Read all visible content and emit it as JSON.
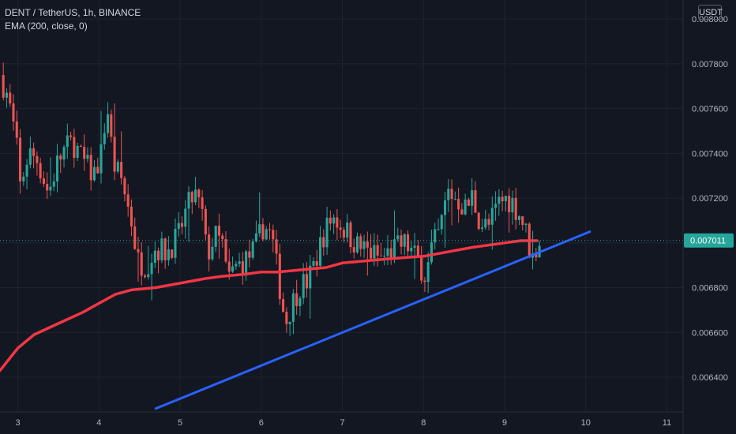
{
  "header": {
    "title": "DENT / TetherUS, 1h, BINANCE",
    "indicator": "EMA (200, close, 0)"
  },
  "axis": {
    "currency": "USDT"
  },
  "colors": {
    "background": "#131722",
    "up": "#26a69a",
    "down": "#ef5350",
    "ema": "#f23645",
    "trendline": "#2962ff",
    "grid": "#1f2330",
    "price_badge": "#26a69a"
  },
  "chart_data": {
    "type": "candlestick",
    "symbol": "DENT / TetherUS",
    "interval": "1h",
    "exchange": "BINANCE",
    "x_ticks": [
      "3",
      "4",
      "5",
      "6",
      "7",
      "8",
      "9",
      "10",
      "11"
    ],
    "x_tick_values": [
      3,
      4,
      5,
      6,
      7,
      8,
      9,
      10,
      11
    ],
    "xlim": [
      2.78,
      11.2
    ],
    "y_ticks": [
      "0.008000",
      "0.007800",
      "0.007600",
      "0.007400",
      "0.007200",
      "0.007000",
      "0.006800",
      "0.006600",
      "0.006400"
    ],
    "y_tick_values": [
      0.008,
      0.0078,
      0.0076,
      0.0074,
      0.0072,
      0.007,
      0.0068,
      0.0066,
      0.0064
    ],
    "ylim": [
      0.006245,
      0.008085
    ],
    "last_price": 0.007011,
    "last_price_label": "0.007011",
    "grid": true,
    "trendline": {
      "x": [
        4.7,
        10.05
      ],
      "y": [
        0.00626,
        0.00705
      ]
    },
    "ema_path": [
      [
        2.78,
        0.00643
      ],
      [
        3.0,
        0.00653
      ],
      [
        3.2,
        0.00659
      ],
      [
        3.5,
        0.00664
      ],
      [
        3.8,
        0.00669
      ],
      [
        4.0,
        0.00673
      ],
      [
        4.2,
        0.00677
      ],
      [
        4.4,
        0.00679
      ],
      [
        4.7,
        0.0068
      ],
      [
        5.0,
        0.00682
      ],
      [
        5.3,
        0.00684
      ],
      [
        5.5,
        0.00685
      ],
      [
        5.8,
        0.00686
      ],
      [
        6.0,
        0.00687
      ],
      [
        6.2,
        0.00687
      ],
      [
        6.5,
        0.00688
      ],
      [
        6.8,
        0.00689
      ],
      [
        7.0,
        0.00691
      ],
      [
        7.3,
        0.00692
      ],
      [
        7.6,
        0.00693
      ],
      [
        8.0,
        0.00694
      ],
      [
        8.3,
        0.00696
      ],
      [
        8.6,
        0.00698
      ],
      [
        9.0,
        0.007
      ],
      [
        9.2,
        0.00701
      ],
      [
        9.4,
        0.00701
      ]
    ],
    "price_path": [
      [
        2.8,
        0.00775
      ],
      [
        2.9,
        0.00765
      ],
      [
        3.0,
        0.00745
      ],
      [
        3.05,
        0.00725
      ],
      [
        3.15,
        0.0074
      ],
      [
        3.25,
        0.00738
      ],
      [
        3.4,
        0.00722
      ],
      [
        3.5,
        0.00735
      ],
      [
        3.6,
        0.00742
      ],
      [
        3.7,
        0.00745
      ],
      [
        3.8,
        0.00738
      ],
      [
        3.95,
        0.0073
      ],
      [
        4.05,
        0.0074
      ],
      [
        4.12,
        0.00762
      ],
      [
        4.2,
        0.00735
      ],
      [
        4.3,
        0.00728
      ],
      [
        4.42,
        0.0071
      ],
      [
        4.5,
        0.00692
      ],
      [
        4.6,
        0.0069
      ],
      [
        4.72,
        0.00698
      ],
      [
        4.85,
        0.00696
      ],
      [
        5.0,
        0.00703
      ],
      [
        5.1,
        0.00715
      ],
      [
        5.2,
        0.00722
      ],
      [
        5.3,
        0.00712
      ],
      [
        5.35,
        0.00694
      ],
      [
        5.45,
        0.00703
      ],
      [
        5.55,
        0.00699
      ],
      [
        5.6,
        0.00683
      ],
      [
        5.7,
        0.00689
      ],
      [
        5.85,
        0.00693
      ],
      [
        5.95,
        0.00698
      ],
      [
        6.05,
        0.00708
      ],
      [
        6.15,
        0.00703
      ],
      [
        6.25,
        0.0068
      ],
      [
        6.32,
        0.00664
      ],
      [
        6.4,
        0.00673
      ],
      [
        6.5,
        0.00681
      ],
      [
        6.6,
        0.00683
      ],
      [
        6.7,
        0.00693
      ],
      [
        6.78,
        0.00703
      ],
      [
        6.9,
        0.00712
      ],
      [
        7.05,
        0.00706
      ],
      [
        7.2,
        0.00699
      ],
      [
        7.35,
        0.00696
      ],
      [
        7.5,
        0.00693
      ],
      [
        7.65,
        0.00697
      ],
      [
        7.8,
        0.007
      ],
      [
        7.95,
        0.00692
      ],
      [
        8.05,
        0.00685
      ],
      [
        8.12,
        0.00697
      ],
      [
        8.22,
        0.00705
      ],
      [
        8.32,
        0.00723
      ],
      [
        8.42,
        0.0072
      ],
      [
        8.55,
        0.00715
      ],
      [
        8.62,
        0.00721
      ],
      [
        8.72,
        0.00709
      ],
      [
        8.82,
        0.00707
      ],
      [
        8.95,
        0.00718
      ],
      [
        9.05,
        0.0072
      ],
      [
        9.12,
        0.00718
      ],
      [
        9.2,
        0.00713
      ],
      [
        9.27,
        0.00707
      ],
      [
        9.33,
        0.00697
      ],
      [
        9.37,
        0.00693
      ],
      [
        9.42,
        0.00699
      ],
      [
        9.45,
        0.00701
      ]
    ],
    "candle_range": [
      2.8,
      9.45
    ]
  }
}
